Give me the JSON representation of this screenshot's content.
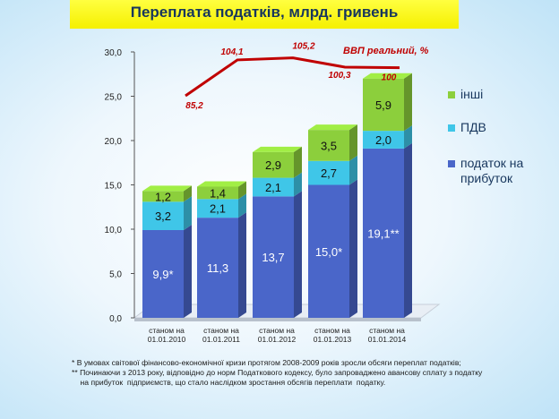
{
  "chart_data": {
    "type": "bar",
    "title": "Переплата податків, млрд. гривень",
    "stacked": true,
    "categories": [
      "станом на|01.01.2010",
      "станом на|01.01.2011",
      "станом на|01.01.2012",
      "станом на|01.01.2013",
      "станом на|01.01.2014"
    ],
    "series": [
      {
        "name": "податок на прибуток",
        "color": "#4a66c9",
        "values": [
          9.9,
          11.3,
          13.7,
          15.0,
          19.1
        ],
        "labels": [
          "9,9*",
          "11,3",
          "13,7",
          "15,0*",
          "19,1**"
        ]
      },
      {
        "name": "ПДВ",
        "color": "#3fc6e8",
        "values": [
          3.2,
          2.1,
          2.1,
          2.7,
          2.0
        ],
        "labels": [
          "3,2",
          "2,1",
          "2,1",
          "2,7",
          "2,0"
        ]
      },
      {
        "name": "інші",
        "color": "#8ccf3c",
        "values": [
          1.2,
          1.4,
          2.9,
          3.5,
          5.9
        ],
        "labels": [
          "1,2",
          "1,4",
          "2,9",
          "3,5",
          "5,9"
        ]
      }
    ],
    "legend_labels": [
      "інші",
      "ПДВ",
      "податок на|прибуток"
    ],
    "line": {
      "name": "ВВП реальний, %",
      "color": "#c00000",
      "values": [
        85.2,
        104.1,
        105.2,
        100.3,
        100
      ],
      "labels": [
        "85,2",
        "104,1",
        "105,2",
        "100,3",
        "100"
      ]
    },
    "ylim": [
      0,
      30
    ],
    "yticks": [
      "0,0",
      "5,0",
      "10,0",
      "15,0",
      "20,0",
      "25,0",
      "30,0"
    ]
  },
  "notes": [
    "*  В умовах світової фінансово-економічної кризи протягом 2008-2009 років  зросли обсяги переплат  податків;",
    "** Починаючи з 2013 року,  відповідно до норм Податкового кодексу, було запроваджено авансову сплату з податку",
    "    на прибуток  підприємств, що стало наслідком зростання обсягів переплати  податку."
  ]
}
